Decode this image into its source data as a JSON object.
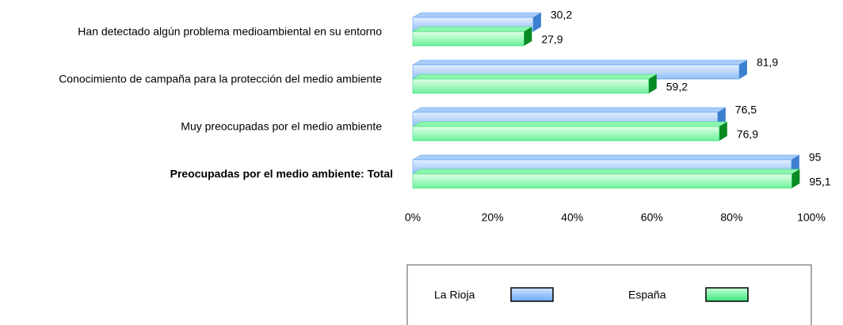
{
  "chart_data": {
    "type": "bar3d_horizontal",
    "categories": [
      "Han detectado algún problema medioambiental en su entorno",
      "Conocimiento de campaña para la protección del medio ambiente",
      "Muy preocupadas por el medio ambiente",
      "Preocupadas por el medio ambiente: Total"
    ],
    "series": [
      {
        "name": "La Rioja",
        "color": "#5aa0f0",
        "values": [
          30.2,
          81.9,
          76.5,
          95
        ],
        "value_labels": [
          "30,2",
          "81,9",
          "76,5",
          "95"
        ]
      },
      {
        "name": "España",
        "color": "#30e070",
        "values": [
          27.9,
          59.2,
          76.9,
          95.1
        ],
        "value_labels": [
          "27,9",
          "59,2",
          "76,9",
          "95,1"
        ]
      }
    ],
    "xlim": [
      0,
      100
    ],
    "xticks": [
      {
        "value": 0,
        "label": "0%"
      },
      {
        "value": 20,
        "label": "20%"
      },
      {
        "value": 40,
        "label": "40%"
      },
      {
        "value": 60,
        "label": "60%"
      },
      {
        "value": 80,
        "label": "80%"
      },
      {
        "value": 100,
        "label": "100%"
      }
    ],
    "legend": "bottom"
  }
}
